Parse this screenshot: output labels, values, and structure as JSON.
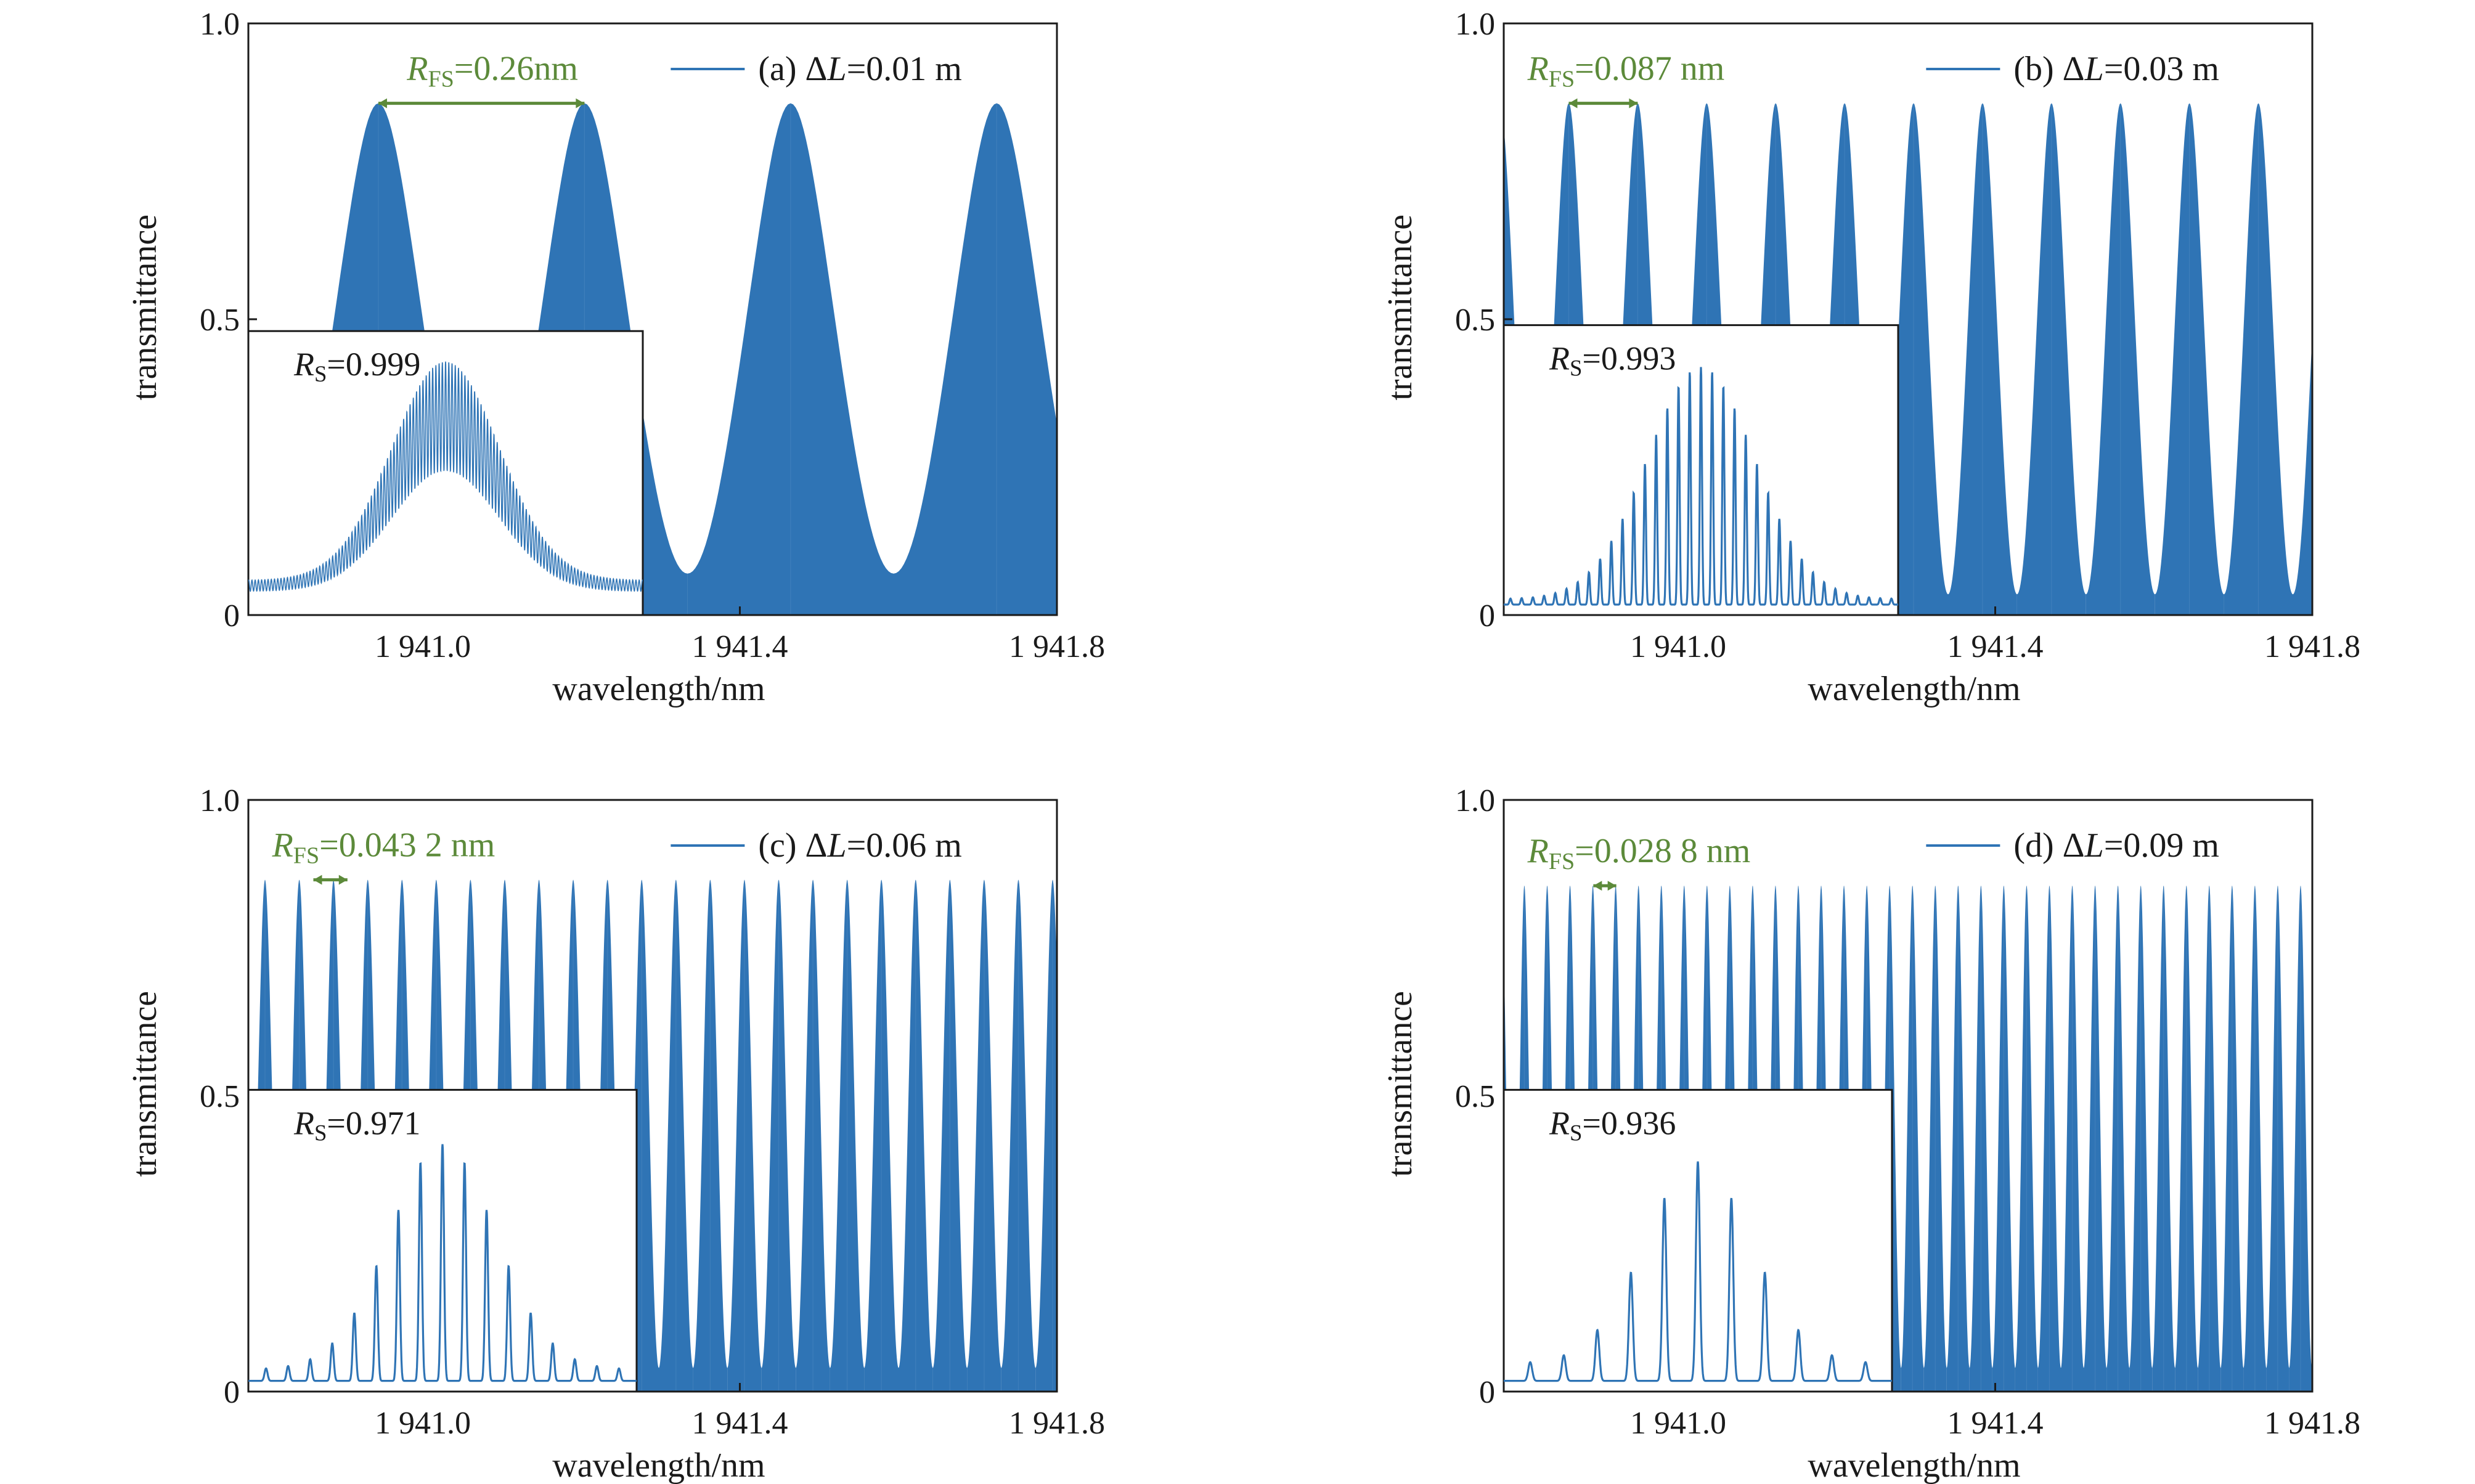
{
  "colors": {
    "series": "#2F74B5",
    "annotation": "#5C8A3A",
    "axis": "#1a1a1a"
  },
  "chart_data": [
    {
      "type": "line",
      "panel": "a",
      "legend": {
        "prefix": "(a) Δ",
        "var": "L",
        "value": "=0.01 m",
        "placement": "top-right"
      },
      "xlabel": "wavelength/nm",
      "ylabel": "transmittance",
      "xlim": [
        1940.78,
        1941.8
      ],
      "ylim": [
        0,
        1.0
      ],
      "xticks": [
        1941.0,
        1941.4,
        1941.8
      ],
      "xtick_labels": [
        "1 941.0",
        "1 941.4",
        "1 941.8"
      ],
      "yticks": [
        0,
        0.5,
        1.0
      ],
      "ytick_labels": [
        "0",
        "0.5",
        "1.0"
      ],
      "envelope": {
        "peak": 0.865,
        "trough": 0.07,
        "fsr_nm": 0.26,
        "first_peak_nm": 1940.944
      },
      "fsr_annotation": {
        "var": "R",
        "sub": "FS",
        "value": "=0.26nm",
        "from_nm": 1940.944,
        "to_nm": 1941.204,
        "y": 0.865
      },
      "inset": {
        "label_var": "R",
        "label_sub": "S",
        "label_value": "=0.999",
        "center_nm": 1941.04,
        "fringe_period_nm": 0.0036,
        "rs": 0.999,
        "sidelobe_min": 0.045,
        "sidelobe_max": 0.45
      }
    },
    {
      "type": "line",
      "panel": "b",
      "legend": {
        "prefix": "(b) Δ",
        "var": "L",
        "value": "=0.03 m",
        "placement": "top-right"
      },
      "xlabel": "wavelength/nm",
      "ylabel": "transmittance",
      "xlim": [
        1940.78,
        1941.8
      ],
      "ylim": [
        0,
        1.0
      ],
      "xticks": [
        1941.0,
        1941.4,
        1941.8
      ],
      "xtick_labels": [
        "1 941.0",
        "1 941.4",
        "1 941.8"
      ],
      "yticks": [
        0,
        0.5,
        1.0
      ],
      "ytick_labels": [
        "0",
        "0.5",
        "1.0"
      ],
      "envelope": {
        "peak": 0.865,
        "trough": 0.035,
        "fsr_nm": 0.087,
        "first_peak_nm": 1940.862
      },
      "fsr_annotation": {
        "var": "R",
        "sub": "FS",
        "value": "=0.087 nm",
        "from_nm": 1940.862,
        "to_nm": 1940.949,
        "y": 0.865
      },
      "inset": {
        "label_var": "R",
        "label_sub": "S",
        "label_value": "=0.993",
        "center_nm": 1941.04,
        "fringe_period_nm": 0.0125,
        "rs": 0.993,
        "sidelobe_min": 0.01,
        "sidelobe_max": 0.43
      }
    },
    {
      "type": "line",
      "panel": "c",
      "legend": {
        "prefix": "(c) Δ",
        "var": "L",
        "value": "=0.06 m",
        "placement": "top-right"
      },
      "xlabel": "wavelength/nm",
      "ylabel": "transmittance",
      "xlim": [
        1940.78,
        1941.8
      ],
      "ylim": [
        0,
        1.0
      ],
      "xticks": [
        1941.0,
        1941.4,
        1941.8
      ],
      "xtick_labels": [
        "1 941.0",
        "1 941.4",
        "1 941.8"
      ],
      "yticks": [
        0,
        0.5,
        1.0
      ],
      "ytick_labels": [
        "0",
        "0.5",
        "1.0"
      ],
      "envelope": {
        "peak": 0.865,
        "trough": 0.04,
        "fsr_nm": 0.0432,
        "first_peak_nm": 1940.801
      },
      "fsr_annotation": {
        "var": "R",
        "sub": "FS",
        "value": "=0.043 2 nm",
        "from_nm": 1940.862,
        "to_nm": 1940.905,
        "y": 0.865
      },
      "inset": {
        "label_var": "R",
        "label_sub": "S",
        "label_value": "=0.971",
        "center_nm": 1941.04,
        "fringe_period_nm": 0.025,
        "rs": 0.971,
        "sidelobe_min": 0.02,
        "sidelobe_max": 0.41
      }
    },
    {
      "type": "line",
      "panel": "d",
      "legend": {
        "prefix": "(d) Δ",
        "var": "L",
        "value": "=0.09 m",
        "placement": "top-right"
      },
      "xlabel": "wavelength/nm",
      "ylabel": "transmittance",
      "xlim": [
        1940.78,
        1941.8
      ],
      "ylim": [
        0,
        1.0
      ],
      "xticks": [
        1941.0,
        1941.4,
        1941.8
      ],
      "xtick_labels": [
        "1 941.0",
        "1 941.4",
        "1 941.8"
      ],
      "yticks": [
        0,
        0.5,
        1.0
      ],
      "ytick_labels": [
        "0",
        "0.5",
        "1.0"
      ],
      "envelope": {
        "peak": 0.855,
        "trough": 0.04,
        "fsr_nm": 0.0288,
        "first_peak_nm": 1940.806
      },
      "fsr_annotation": {
        "var": "R",
        "sub": "FS",
        "value": "=0.028 8 nm",
        "from_nm": 1940.893,
        "to_nm": 1940.922,
        "y": 0.855
      },
      "inset": {
        "label_var": "R",
        "label_sub": "S",
        "label_value": "=0.936",
        "center_nm": 1941.04,
        "fringe_period_nm": 0.038,
        "rs": 0.936,
        "sidelobe_min": 0.03,
        "sidelobe_max": 0.38
      }
    }
  ]
}
